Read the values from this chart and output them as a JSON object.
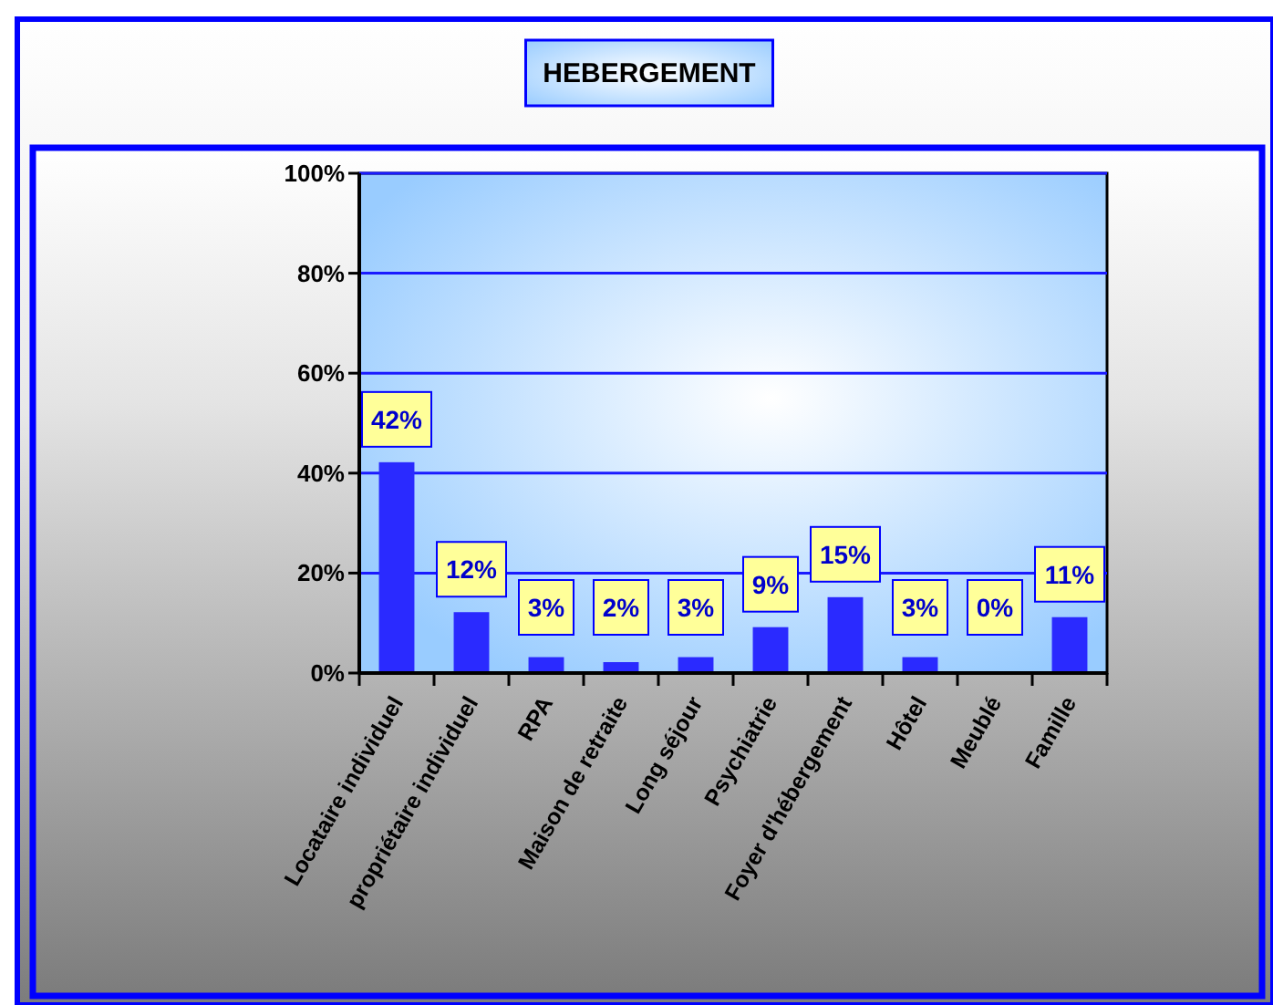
{
  "chart_data": {
    "type": "bar",
    "title": "HEBERGEMENT",
    "categories": [
      "Locataire individuel",
      "propriétaire individuel",
      "RPA",
      "Maison de retraite",
      "Long séjour",
      "Psychiatrie",
      "Foyer d'hébergement",
      "Hôtel",
      "Meublé",
      "Famille"
    ],
    "values": [
      42,
      12,
      3,
      2,
      3,
      9,
      15,
      3,
      0,
      11
    ],
    "value_labels": [
      "42%",
      "12%",
      "3%",
      "2%",
      "3%",
      "9%",
      "15%",
      "3%",
      "0%",
      "11%"
    ],
    "color": "#2a2aff",
    "ylim": [
      0,
      100
    ],
    "yticks": [
      {
        "value": 0,
        "label": "0%"
      },
      {
        "value": 20,
        "label": "20%"
      },
      {
        "value": 40,
        "label": "40%"
      },
      {
        "value": 60,
        "label": "60%"
      },
      {
        "value": 80,
        "label": "80%"
      },
      {
        "value": 100,
        "label": "100%"
      }
    ],
    "grid": "y"
  }
}
